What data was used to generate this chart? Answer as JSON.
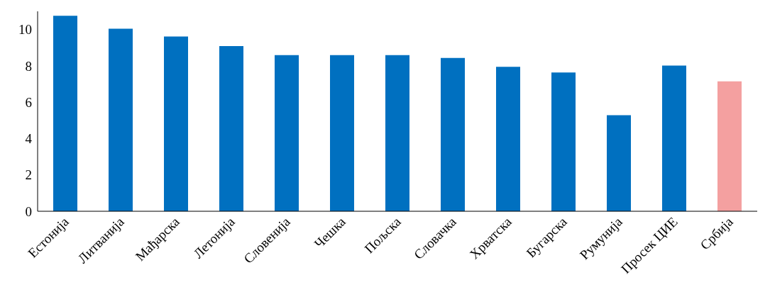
{
  "chart_data": {
    "type": "bar",
    "categories": [
      "Естонија",
      "Литванија",
      "Мађарска",
      "Летонија",
      "Словенија",
      "Чешка",
      "Пољска",
      "Словачка",
      "Хрватска",
      "Бугарска",
      "Румунија",
      "Просек ЦИЕ",
      "Србија"
    ],
    "values": [
      10.76,
      10.04,
      9.62,
      9.09,
      8.59,
      8.59,
      8.59,
      8.44,
      7.95,
      7.64,
      5.29,
      8.02,
      7.15
    ],
    "colors": [
      "#0070c0",
      "#0070c0",
      "#0070c0",
      "#0070c0",
      "#0070c0",
      "#0070c0",
      "#0070c0",
      "#0070c0",
      "#0070c0",
      "#0070c0",
      "#0070c0",
      "#0070c0",
      "#f4a0a0"
    ],
    "ylim": [
      0,
      11
    ],
    "yticks": [
      0,
      2,
      4,
      6,
      8,
      10
    ],
    "grid": false,
    "legend": false
  }
}
